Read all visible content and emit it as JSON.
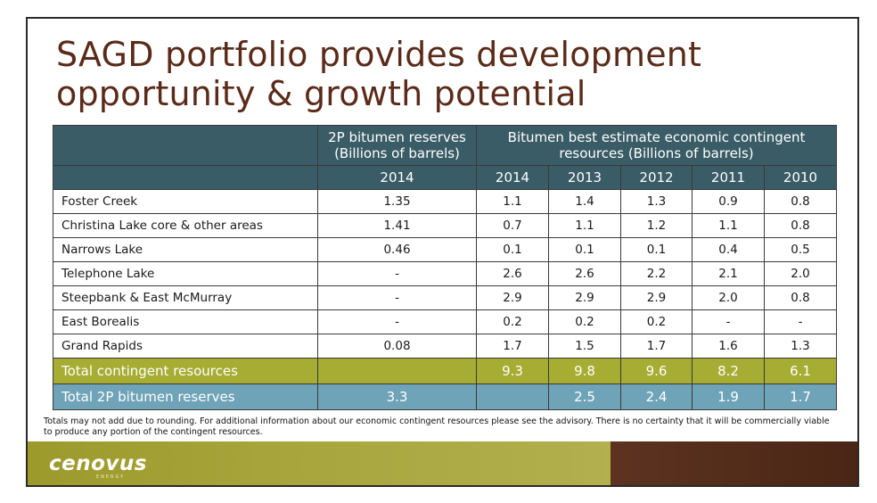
{
  "title": {
    "line1": "SAGD portfolio provides development",
    "line2": "opportunity & growth potential"
  },
  "table": {
    "header": {
      "reserves_group": "2P bitumen reserves (Billions of barrels)",
      "contingent_group": "Bitumen best estimate economic contingent resources (Billions of barrels)",
      "reserves_year": "2014",
      "contingent_years": [
        "2014",
        "2013",
        "2012",
        "2011",
        "2010"
      ]
    },
    "rows": [
      {
        "name": "Foster Creek",
        "reserves": "1.35",
        "c": [
          "1.1",
          "1.4",
          "1.3",
          "0.9",
          "0.8"
        ]
      },
      {
        "name": "Christina Lake core & other areas",
        "reserves": "1.41",
        "c": [
          "0.7",
          "1.1",
          "1.2",
          "1.1",
          "0.8"
        ]
      },
      {
        "name": "Narrows Lake",
        "reserves": "0.46",
        "c": [
          "0.1",
          "0.1",
          "0.1",
          "0.4",
          "0.5"
        ]
      },
      {
        "name": "Telephone Lake",
        "reserves": "-",
        "c": [
          "2.6",
          "2.6",
          "2.2",
          "2.1",
          "2.0"
        ]
      },
      {
        "name": "Steepbank & East McMurray",
        "reserves": "-",
        "c": [
          "2.9",
          "2.9",
          "2.9",
          "2.0",
          "0.8"
        ]
      },
      {
        "name": "East Borealis",
        "reserves": "-",
        "c": [
          "0.2",
          "0.2",
          "0.2",
          "-",
          "-"
        ]
      },
      {
        "name": "Grand Rapids",
        "reserves": "0.08",
        "c": [
          "1.7",
          "1.5",
          "1.7",
          "1.6",
          "1.3"
        ]
      }
    ],
    "total_contingent": {
      "name": "Total contingent resources",
      "reserves": "",
      "c": [
        "9.3",
        "9.8",
        "9.6",
        "8.2",
        "6.1"
      ]
    },
    "total_2p": {
      "name": "Total 2P bitumen reserves",
      "reserves": "3.3",
      "c": [
        "",
        "2.5",
        "2.4",
        "1.9",
        "1.7"
      ]
    }
  },
  "footnote": "Totals may not add due to rounding. For additional information about our economic contingent resources please see the advisory. There is no certainty that it will be commercially viable to produce any portion of the contingent resources.",
  "logo": {
    "name": "cenovus",
    "sub": "ENERGY"
  },
  "colors": {
    "title": "#5b2b1a",
    "header_bg": "#3a5c66",
    "total_contingent_bg": "#a7ac33",
    "total_2p_bg": "#6fa3b8",
    "footer_green": "#a6a43a",
    "footer_brown": "#4a2515"
  }
}
